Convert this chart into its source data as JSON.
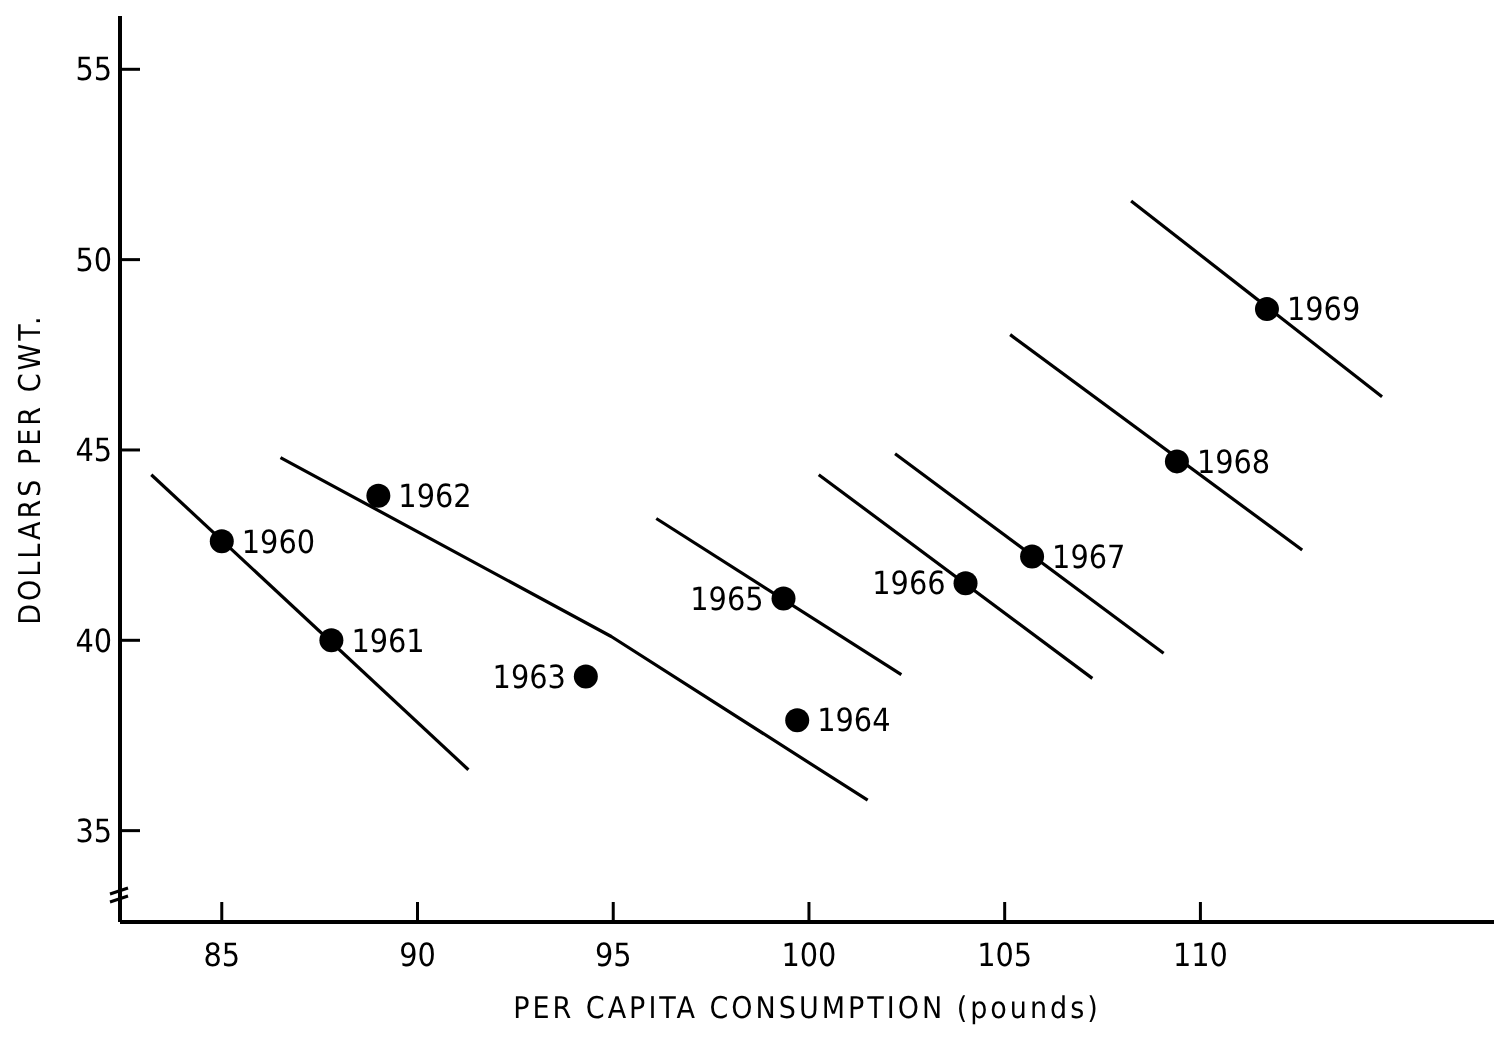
{
  "chart_data": {
    "type": "scatter",
    "xlabel": "PER CAPITA CONSUMPTION (pounds)",
    "ylabel": "DOLLARS PER CWT.",
    "xlim": [
      82.4,
      117.5
    ],
    "ylim": [
      32.6,
      56.4
    ],
    "xticks": [
      85,
      90,
      95,
      100,
      105,
      110
    ],
    "yticks": [
      35,
      40,
      45,
      50,
      55
    ],
    "grid": false,
    "series": [
      {
        "color": "#000000",
        "marker": "circle",
        "x": [
          85,
          87.8,
          89.0,
          94.3,
          99.7,
          99.35,
          104.0,
          105.7,
          109.4,
          111.7
        ],
        "values": [
          42.6,
          40.0,
          43.8,
          39.05,
          37.9,
          41.1,
          41.5,
          42.2,
          44.7,
          48.7
        ]
      },
      {
        "type": "line",
        "color": "#000000",
        "x": [
          83.2,
          91.3
        ],
        "values": [
          44.35,
          36.6
        ]
      },
      {
        "type": "line",
        "color": "#000000",
        "x": [
          86.5,
          94.95,
          101.5
        ],
        "values": [
          44.8,
          40.1,
          35.8
        ]
      },
      {
        "type": "line",
        "color": "#000000",
        "x": [
          96.1,
          102.36
        ],
        "values": [
          43.2,
          39.1
        ]
      },
      {
        "type": "line",
        "color": "#000000",
        "x": [
          100.25,
          107.24
        ],
        "values": [
          44.35,
          39.0
        ]
      },
      {
        "type": "line",
        "color": "#000000",
        "x": [
          102.2,
          109.06
        ],
        "values": [
          44.9,
          39.66
        ]
      },
      {
        "type": "line",
        "color": "#000000",
        "x": [
          105.14,
          112.6
        ],
        "values": [
          48.03,
          42.37
        ]
      },
      {
        "type": "line",
        "color": "#000000",
        "x": [
          108.23,
          114.64
        ],
        "values": [
          51.54,
          46.4
        ]
      }
    ],
    "annotations": [
      {
        "text": "1960",
        "x": 85,
        "y": 42.6
      },
      {
        "text": "1961",
        "x": 87.8,
        "y": 40.0
      },
      {
        "text": "1962",
        "x": 89.0,
        "y": 43.8
      },
      {
        "text": "1963",
        "x": 94.3,
        "y": 39.05
      },
      {
        "text": "1964",
        "x": 99.7,
        "y": 37.9
      },
      {
        "text": "1965",
        "x": 99.35,
        "y": 41.1
      },
      {
        "text": "1966",
        "x": 104.0,
        "y": 41.5
      },
      {
        "text": "1967",
        "x": 105.7,
        "y": 42.2
      },
      {
        "text": "1968",
        "x": 109.4,
        "y": 44.7
      },
      {
        "text": "1969",
        "x": 111.7,
        "y": 48.7
      }
    ]
  }
}
